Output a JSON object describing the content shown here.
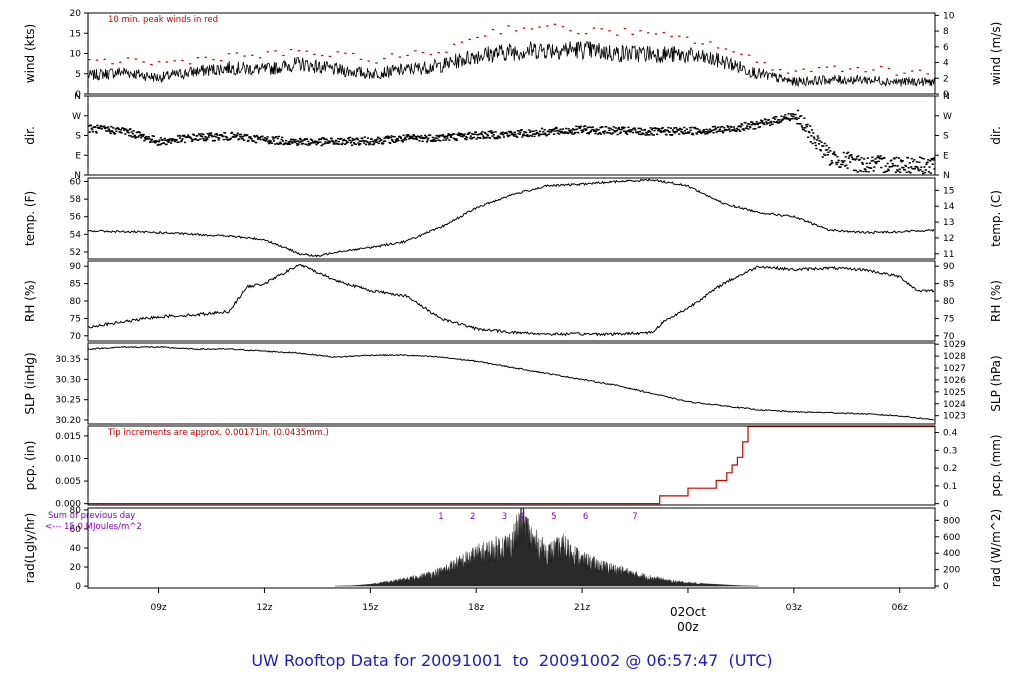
{
  "chart_data": {
    "type": "line",
    "title": "UW Rooftop Data for 20091001  to  20091002 @ 06:57:47  (UTC)",
    "x_axis": {
      "ticks": [
        "09z",
        "12z",
        "15z",
        "18z",
        "21z",
        "00z",
        "03z",
        "06z"
      ],
      "tick_hours": [
        9,
        12,
        15,
        18,
        21,
        24,
        27,
        30
      ],
      "range_hours": [
        7.0,
        31.0
      ],
      "date_label": "02Oct",
      "date_label_color": "#cc0000"
    },
    "grid": false,
    "panels": [
      {
        "id": "wind",
        "left_label": "wind (kts)",
        "right_label": "wind (m/s)",
        "left_ylim": [
          0,
          20
        ],
        "left_ticks": [
          "0",
          "5",
          "10",
          "15",
          "20"
        ],
        "left_tick_values": [
          0,
          5,
          10,
          15,
          20
        ],
        "right_ylim": [
          0,
          10.3
        ],
        "right_ticks": [
          "0",
          "2",
          "4",
          "6",
          "8",
          "10"
        ],
        "right_tick_values": [
          0,
          2,
          4,
          6,
          8,
          10
        ],
        "annotation": "10 min. peak winds in red",
        "annotation_color": "#cc0000",
        "series": [
          {
            "name": "wind speed",
            "color": "#000000",
            "x": [
              7,
              8,
              9,
              10,
              11,
              12,
              13,
              14,
              15,
              16,
              17,
              18,
              19,
              20,
              21,
              22,
              23,
              24,
              25,
              26,
              27,
              28,
              29,
              30,
              31
            ],
            "y": [
              4.5,
              5.5,
              4.0,
              5.5,
              6.5,
              6.0,
              7.5,
              6.0,
              5.0,
              6.0,
              7.0,
              9.5,
              10.5,
              11.0,
              11.0,
              10.0,
              10.0,
              9.5,
              8.0,
              5.0,
              3.0,
              3.5,
              3.5,
              3.0,
              3.0
            ]
          },
          {
            "name": "10 min. peak winds",
            "color": "#cc0000",
            "style": "dots",
            "x": [
              7,
              8,
              9,
              10,
              11,
              12,
              13,
              14,
              15,
              16,
              17,
              18,
              19,
              20,
              21,
              22,
              23,
              24,
              25,
              26,
              27,
              28,
              29,
              30,
              31
            ],
            "y": [
              7,
              8,
              7,
              8,
              9,
              9,
              10,
              9,
              8,
              9,
              10,
              14,
              16,
              16,
              15,
              15,
              14,
              13,
              11,
              7,
              5,
              6,
              6,
              5,
              5
            ]
          }
        ]
      },
      {
        "id": "dir",
        "left_label": "dir.",
        "right_label": "dir.",
        "left_ylim": [
          0,
          360
        ],
        "left_ticks": [
          "N",
          "E",
          "S",
          "W",
          "N"
        ],
        "left_tick_values": [
          0,
          90,
          180,
          270,
          360
        ],
        "right_ylim": [
          0,
          360
        ],
        "right_ticks": [
          "N",
          "E",
          "S",
          "W",
          "N"
        ],
        "right_tick_values": [
          0,
          90,
          180,
          270,
          360
        ],
        "series": [
          {
            "name": "wind direction",
            "color": "#000000",
            "style": "dots",
            "x": [
              7,
              8,
              9,
              10,
              11,
              12,
              13,
              14,
              15,
              16,
              17,
              18,
              19,
              20,
              21,
              22,
              23,
              24,
              25,
              26,
              27,
              28,
              29,
              30,
              31
            ],
            "y": [
              210,
              200,
              150,
              170,
              175,
              160,
              150,
              150,
              155,
              165,
              170,
              180,
              185,
              195,
              205,
              200,
              195,
              200,
              205,
              230,
              270,
              80,
              45,
              50,
              40
            ]
          }
        ]
      },
      {
        "id": "temp",
        "left_label": "temp. (F)",
        "right_label": "temp. (C)",
        "left_ylim": [
          51.2,
          60.4
        ],
        "left_ticks": [
          "52",
          "54",
          "56",
          "58",
          "60"
        ],
        "left_tick_values": [
          52,
          54,
          56,
          58,
          60
        ],
        "right_ylim": [
          10.67,
          15.78
        ],
        "right_ticks": [
          "11",
          "12",
          "13",
          "14",
          "15"
        ],
        "right_tick_values": [
          11,
          12,
          13,
          14,
          15
        ],
        "series": [
          {
            "name": "temperature",
            "color": "#000000",
            "x": [
              7,
              8,
              9,
              10,
              11,
              12,
              12.5,
              13,
              13.5,
              14,
              15,
              16,
              17,
              18,
              19,
              20,
              21,
              22,
              23,
              24,
              25,
              26,
              27,
              28,
              29,
              30,
              31
            ],
            "y": [
              54.4,
              54.3,
              54.2,
              54.0,
              53.8,
              53.4,
              52.6,
              51.8,
              51.5,
              52.0,
              52.5,
              53.2,
              54.8,
              57.0,
              58.5,
              59.5,
              59.7,
              60.0,
              60.2,
              59.5,
              57.5,
              56.5,
              56.0,
              54.5,
              54.2,
              54.3,
              54.5
            ]
          }
        ]
      },
      {
        "id": "rh",
        "left_label": "RH (%)",
        "right_label": "RH (%)",
        "left_ylim": [
          68.5,
          91.5
        ],
        "left_ticks": [
          "70",
          "75",
          "80",
          "85",
          "90"
        ],
        "left_tick_values": [
          70,
          75,
          80,
          85,
          90
        ],
        "right_ylim": [
          68.5,
          91.5
        ],
        "right_ticks": [
          "70",
          "75",
          "80",
          "85",
          "90"
        ],
        "right_tick_values": [
          70,
          75,
          80,
          85,
          90
        ],
        "series": [
          {
            "name": "relative humidity",
            "color": "#000000",
            "x": [
              7,
              8,
              9,
              10,
              11,
              11.5,
              12,
              13,
              14,
              15,
              16,
              17,
              18,
              19,
              20,
              21,
              22,
              23,
              23.3,
              24,
              25,
              26,
              27,
              28,
              29,
              30,
              30.5,
              31
            ],
            "y": [
              72.5,
              74.0,
              75.5,
              76.0,
              77.0,
              84.0,
              85.0,
              90.5,
              86.0,
              83.0,
              81.5,
              75.0,
              72.0,
              71.0,
              70.5,
              70.5,
              70.5,
              71.0,
              74.0,
              78.0,
              85.0,
              90.0,
              89.0,
              89.5,
              89.0,
              87.0,
              83.0,
              83.0
            ]
          }
        ]
      },
      {
        "id": "slp",
        "left_label": "SLP (inHg)",
        "right_label": "SLP (hPa)",
        "left_ylim": [
          30.19,
          30.39
        ],
        "left_ticks": [
          "30.20",
          "30.25",
          "30.30",
          "30.35"
        ],
        "left_tick_values": [
          30.2,
          30.25,
          30.3,
          30.35
        ],
        "right_ylim": [
          1022.3,
          1029.1
        ],
        "right_ticks": [
          "1023",
          "1024",
          "1025",
          "1026",
          "1027",
          "1028",
          "1029"
        ],
        "right_tick_values": [
          1023,
          1024,
          1025,
          1026,
          1027,
          1028,
          1029
        ],
        "series": [
          {
            "name": "sea level pressure",
            "color": "#000000",
            "x": [
              7,
              8,
              9,
              10,
              11,
              12,
              13,
              14,
              15,
              16,
              17,
              18,
              19,
              20,
              21,
              22,
              23,
              24,
              25,
              26,
              27,
              28,
              29,
              30,
              31
            ],
            "y": [
              30.375,
              30.38,
              30.38,
              30.375,
              30.375,
              30.37,
              30.365,
              30.355,
              30.36,
              30.36,
              30.355,
              30.345,
              30.33,
              30.315,
              30.3,
              30.285,
              30.265,
              30.245,
              30.235,
              30.225,
              30.22,
              30.218,
              30.215,
              30.21,
              30.2
            ]
          }
        ]
      },
      {
        "id": "pcp",
        "left_label": "pcp. (in)",
        "right_label": "pcp. (mm)",
        "left_ylim": [
          -0.0003,
          0.0172
        ],
        "left_ticks": [
          "0.000",
          "0.005",
          "0.010",
          "0.015"
        ],
        "left_tick_values": [
          0,
          0.005,
          0.01,
          0.015
        ],
        "right_ylim": [
          -0.0076,
          0.4369
        ],
        "right_ticks": [
          "0",
          "0.1",
          "0.2",
          "0.3",
          "0.4"
        ],
        "right_tick_values": [
          0,
          0.1,
          0.2,
          0.3,
          0.4
        ],
        "annotation": "Tip increments are approx. 0.00171in. (0.0435mm.)",
        "annotation_color": "#cc0000",
        "series": [
          {
            "name": "cumulative precipitation",
            "color": "#cc0000",
            "style": "step",
            "x": [
              7,
              23.2,
              23.2,
              24.0,
              24.0,
              24.8,
              24.8,
              25.1,
              25.1,
              25.25,
              25.25,
              25.4,
              25.4,
              25.55,
              25.55,
              25.7,
              25.7,
              31
            ],
            "y": [
              0,
              0,
              0.00171,
              0.00171,
              0.00342,
              0.00342,
              0.00513,
              0.00513,
              0.00684,
              0.00684,
              0.00855,
              0.00855,
              0.01026,
              0.01026,
              0.01368,
              0.01368,
              0.0171,
              0.0171
            ]
          }
        ]
      },
      {
        "id": "rad",
        "left_label": "rad(Lgly/hr)",
        "right_label": "rad (W/m^2)",
        "left_ylim": [
          -2,
          82
        ],
        "left_ticks": [
          "0",
          "20",
          "40",
          "60",
          "80"
        ],
        "left_tick_values": [
          0,
          20,
          40,
          60,
          80
        ],
        "right_ylim": [
          -23,
          950
        ],
        "right_ticks": [
          "0",
          "200",
          "400",
          "600",
          "800"
        ],
        "right_tick_values": [
          0,
          200,
          400,
          600,
          800
        ],
        "legend_lines": [
          "Sum of previous day",
          "<--- 15.0 MJoules/m^2"
        ],
        "legend_color": "#8a00c8",
        "hour_markers": [
          "1",
          "2",
          "3",
          "4",
          "5",
          "6",
          "7"
        ],
        "hour_marker_positions": [
          17.0,
          17.9,
          18.8,
          19.3,
          20.2,
          21.1,
          22.5
        ],
        "series": [
          {
            "name": "solar radiation",
            "color": "#000000",
            "style": "area",
            "x": [
              14.0,
              14.5,
              15.0,
              15.5,
              16.0,
              16.5,
              17.0,
              17.5,
              18.0,
              18.5,
              19.0,
              19.3,
              19.6,
              20.0,
              20.5,
              21.0,
              21.5,
              22.0,
              22.5,
              23.0,
              23.5,
              24.0,
              24.5,
              25.0,
              25.5,
              26.0
            ],
            "y": [
              0,
              0.5,
              2,
              5,
              8,
              12,
              18,
              28,
              38,
              45,
              52,
              80,
              56,
              40,
              48,
              32,
              25,
              20,
              14,
              10,
              6,
              4,
              2.5,
              1.5,
              0.5,
              0
            ]
          }
        ]
      }
    ]
  }
}
